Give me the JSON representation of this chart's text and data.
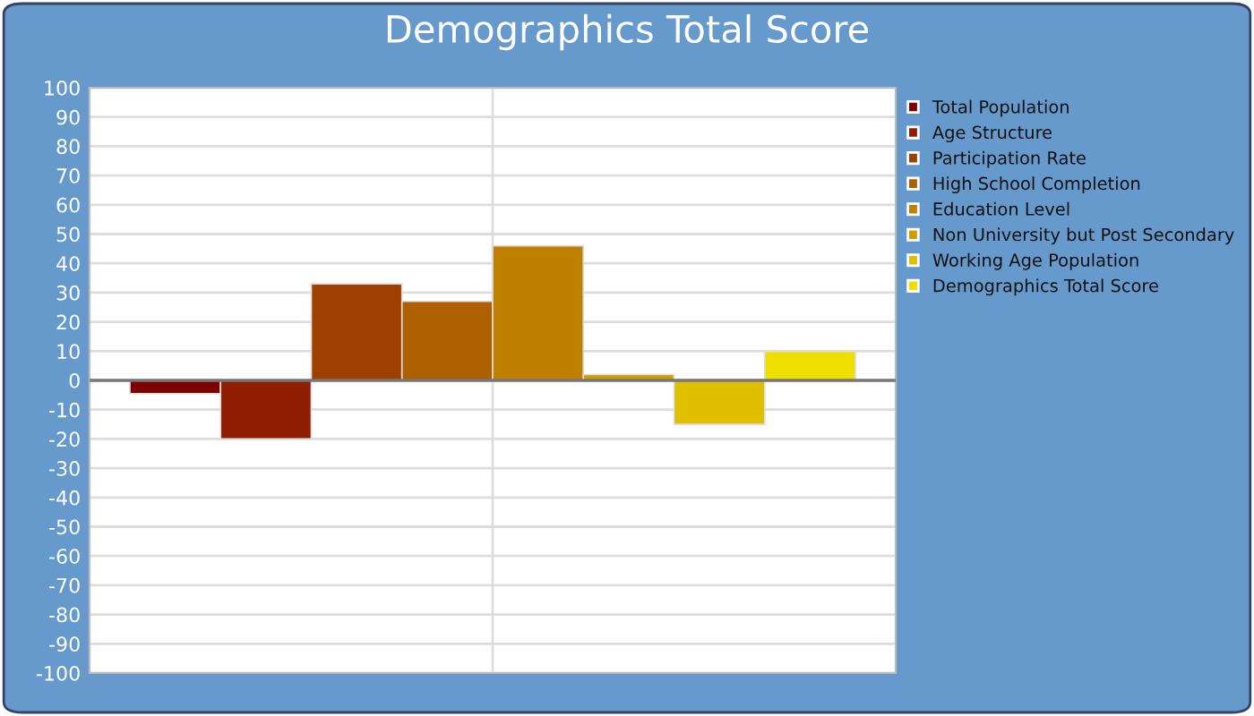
{
  "chart_data": {
    "type": "bar",
    "title": "Demographics Total Score",
    "categories": [
      null
    ],
    "series": [
      {
        "name": "Total Population",
        "color": "#7f0000",
        "values": [
          -4.5
        ]
      },
      {
        "name": "Age Structure",
        "color": "#8f1e00",
        "values": [
          -20
        ]
      },
      {
        "name": "Participation Rate",
        "color": "#9e4000",
        "values": [
          33
        ]
      },
      {
        "name": "High School Completion",
        "color": "#ae6000",
        "values": [
          27
        ]
      },
      {
        "name": "Education Level",
        "color": "#bf8000",
        "values": [
          46
        ]
      },
      {
        "name": "Non University but Post Secondary",
        "color": "#cf9f00",
        "values": [
          2
        ]
      },
      {
        "name": "Working Age Population",
        "color": "#dfbf00",
        "values": [
          -15
        ]
      },
      {
        "name": "Demographics Total Score",
        "color": "#efdf00",
        "values": [
          10
        ]
      }
    ],
    "ylim": [
      -100,
      100
    ],
    "yticks": [
      -100,
      -90,
      -80,
      -70,
      -60,
      -50,
      -40,
      -30,
      -20,
      -10,
      0,
      10,
      20,
      30,
      40,
      50,
      60,
      70,
      80,
      90,
      100
    ],
    "ref_lines": [
      {
        "axis": "y",
        "value": 0,
        "color": "#777777"
      }
    ],
    "grid": true,
    "legend": "right"
  }
}
